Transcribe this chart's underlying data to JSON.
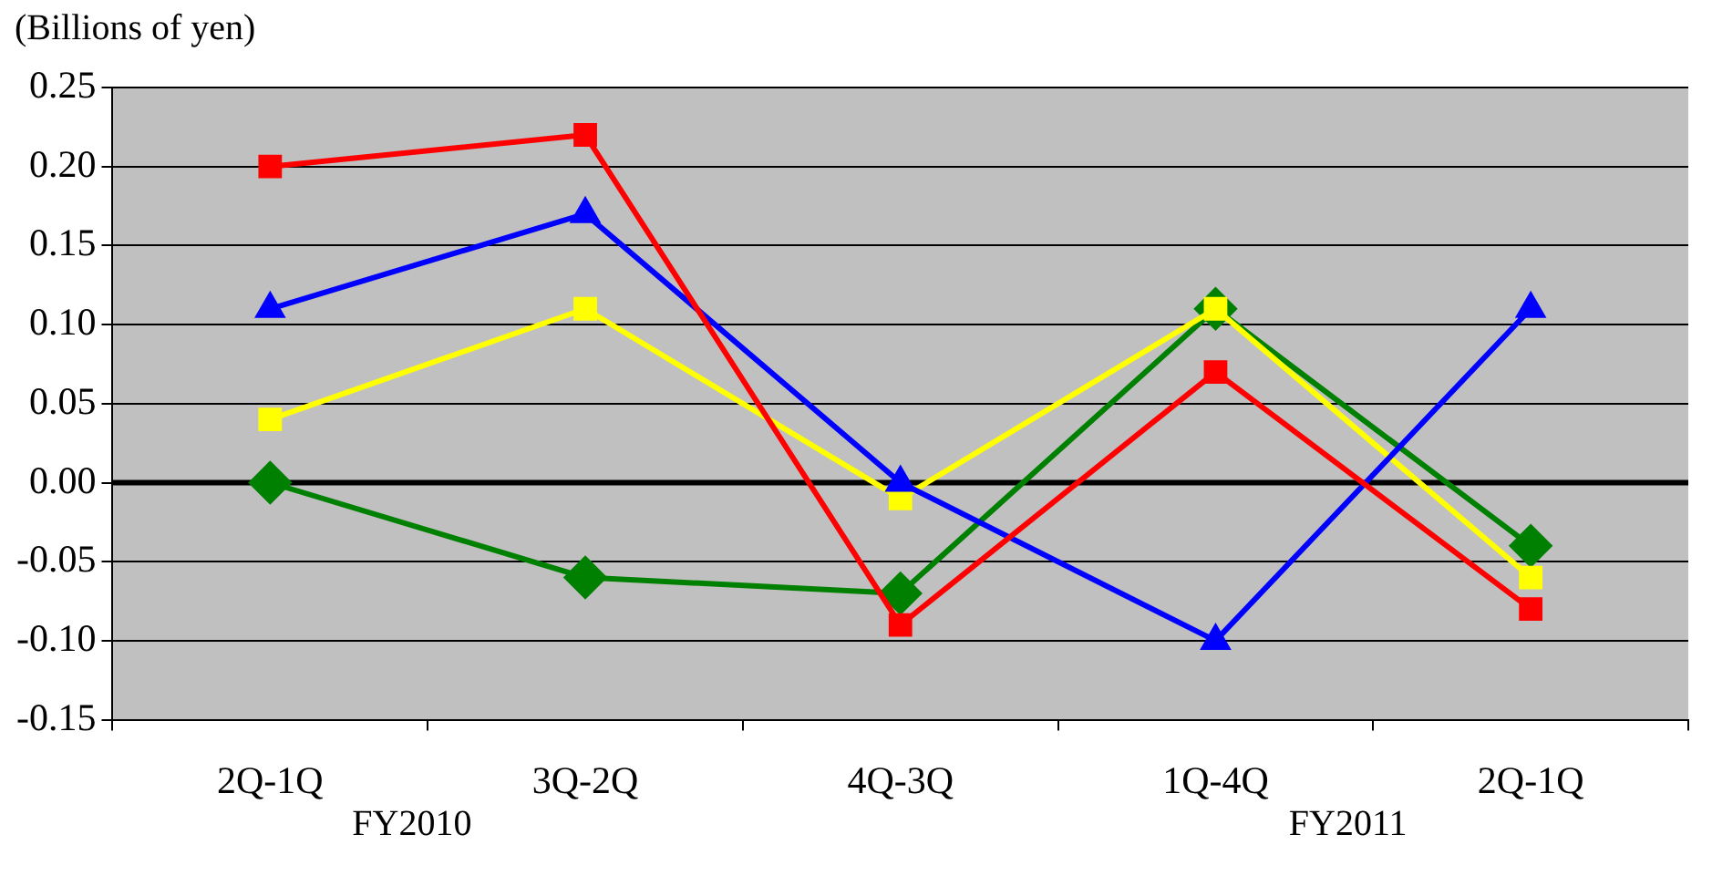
{
  "chart_data": {
    "type": "line",
    "ylabel": "(Billions of yen)",
    "categories": [
      "2Q-1Q",
      "3Q-2Q",
      "4Q-3Q",
      "1Q-4Q",
      "2Q-1Q"
    ],
    "series": [
      {
        "color": "#ff0000",
        "marker": "square",
        "values": [
          0.2,
          0.22,
          -0.09,
          0.07,
          -0.08
        ]
      },
      {
        "color": "#0000ff",
        "marker": "triangle",
        "values": [
          0.11,
          0.17,
          0.0,
          -0.1,
          0.11
        ]
      },
      {
        "color": "#ffff00",
        "marker": "square",
        "values": [
          0.04,
          0.11,
          -0.01,
          0.11,
          -0.06
        ]
      },
      {
        "color": "#008000",
        "marker": "diamond",
        "values": [
          0.0,
          -0.06,
          -0.07,
          0.11,
          -0.04
        ]
      }
    ],
    "ylim": [
      -0.15,
      0.25
    ],
    "yticks": [
      {
        "value": -0.15,
        "label": "-0.15"
      },
      {
        "value": -0.1,
        "label": "-0.10"
      },
      {
        "value": -0.05,
        "label": "-0.05"
      },
      {
        "value": 0,
        "label": "0.00"
      },
      {
        "value": 0.05,
        "label": "0.05"
      },
      {
        "value": 0.1,
        "label": "0.10"
      },
      {
        "value": 0.15,
        "label": "0.15"
      },
      {
        "value": 0.2,
        "label": "0.20"
      },
      {
        "value": 0.25,
        "label": "0.25"
      }
    ],
    "grid": "y",
    "legend": false,
    "line_style": "solid",
    "ref_lines": [
      {
        "axis": "y",
        "value": 0,
        "color": "#000000"
      }
    ],
    "annotations": [
      "FY2010",
      "FY2011"
    ]
  }
}
